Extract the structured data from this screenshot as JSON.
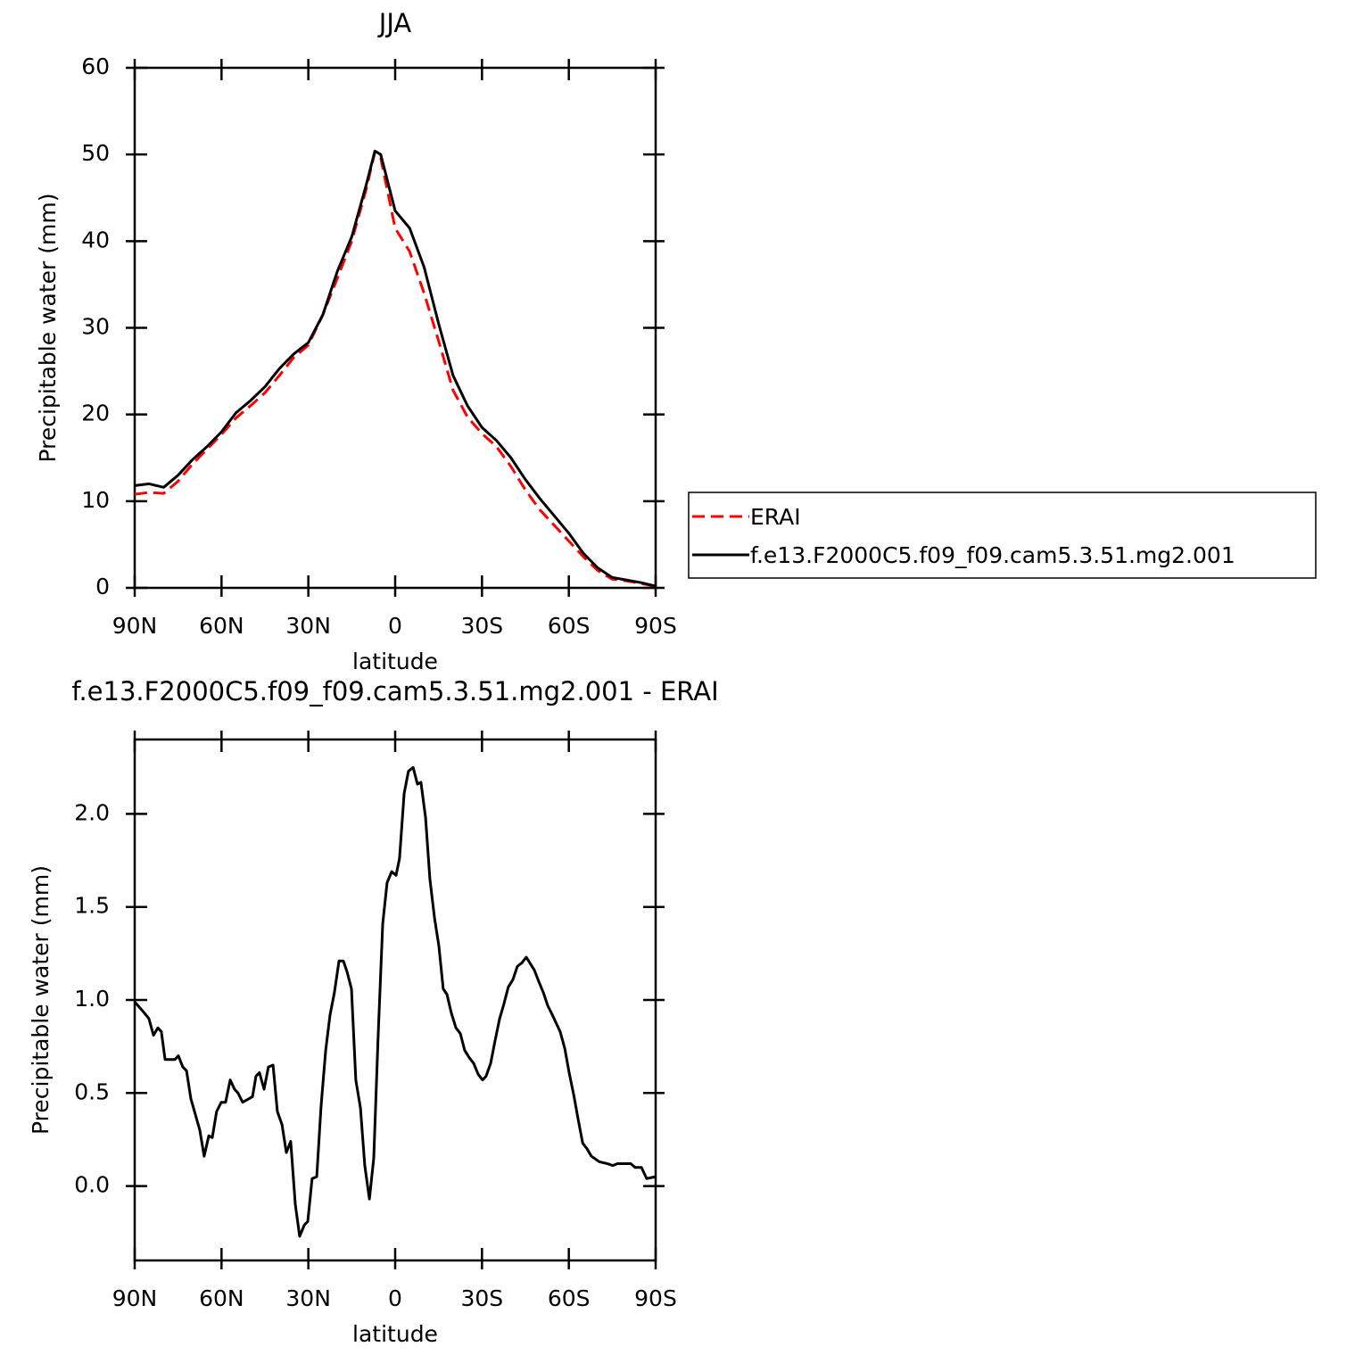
{
  "chart_data": [
    {
      "type": "line",
      "title": "JJA",
      "xlabel": "latitude",
      "ylabel": "Precipitable water (mm)",
      "x": [
        90,
        85,
        80,
        75,
        70,
        65,
        60,
        55,
        50,
        45,
        40,
        35,
        30,
        25,
        20,
        15,
        10,
        7,
        5,
        0,
        -5,
        -10,
        -15,
        -20,
        -25,
        -30,
        -35,
        -40,
        -45,
        -50,
        -55,
        -60,
        -65,
        -70,
        -75,
        -80,
        -85,
        -90
      ],
      "series": [
        {
          "name": "ERAI",
          "color": "#ff0000",
          "style": "dashed",
          "values": [
            10.8,
            11.0,
            10.9,
            12.3,
            14.3,
            16.0,
            17.7,
            19.6,
            21.0,
            22.5,
            24.5,
            26.6,
            28.0,
            31.5,
            35.7,
            40.0,
            46.0,
            50.3,
            49.6,
            41.5,
            38.8,
            34.0,
            28.5,
            22.8,
            19.7,
            17.8,
            16.3,
            14.0,
            11.3,
            9.0,
            7.2,
            5.4,
            3.6,
            2.0,
            1.0,
            0.8,
            0.5,
            0.2
          ]
        },
        {
          "name": "f.e13.F2000C5.f09_f09.cam5.3.51.mg2.001",
          "color": "#000000",
          "style": "solid",
          "values": [
            11.8,
            12.0,
            11.6,
            13.0,
            14.8,
            16.3,
            18.0,
            20.2,
            21.6,
            23.2,
            25.3,
            27.0,
            28.3,
            31.5,
            36.5,
            40.5,
            46.5,
            50.4,
            50.0,
            43.5,
            41.5,
            37.0,
            30.5,
            24.5,
            21.0,
            18.5,
            17.0,
            15.0,
            12.5,
            10.3,
            8.3,
            6.3,
            4.0,
            2.3,
            1.2,
            0.9,
            0.6,
            0.2
          ]
        }
      ],
      "xlim": [
        90,
        -90
      ],
      "xticks": [
        {
          "value": 90,
          "label": "90N"
        },
        {
          "value": 60,
          "label": "60N"
        },
        {
          "value": 30,
          "label": "30N"
        },
        0,
        {
          "value": -30,
          "label": "30S"
        },
        {
          "value": -60,
          "label": "60S"
        },
        {
          "value": -90,
          "label": "90S"
        }
      ],
      "ylim": [
        0,
        60
      ],
      "yticks": [
        0,
        10,
        20,
        30,
        40,
        50,
        60
      ],
      "legend": "outside-right"
    },
    {
      "type": "line",
      "title": "f.e13.F2000C5.f09_f09.cam5.3.51.mg2.001  -  ERAI",
      "xlabel": "latitude",
      "ylabel": "Precipitable water (mm)",
      "x": [
        90,
        87.2,
        85.1,
        83.5,
        82,
        80.8,
        79.5,
        76.1,
        74.9,
        73.4,
        72.1,
        70.6,
        67.5,
        66,
        64.4,
        63.2,
        61.7,
        60.1,
        58.6,
        57,
        55.5,
        54.3,
        52.7,
        49.3,
        48.1,
        46.9,
        45.3,
        43.8,
        42.2,
        40.7,
        39.1,
        37.6,
        36.1,
        34.5,
        33,
        31.4,
        30.2,
        28.7,
        27.1,
        25.6,
        24,
        22.5,
        21,
        19.4,
        17.9,
        16.6,
        15.1,
        13.6,
        12,
        10.5,
        8.9,
        7.4,
        5.9,
        4.3,
        2.8,
        1.2,
        -0.3,
        -1.5,
        -3.1,
        -4.6,
        -6.2,
        -7.7,
        -8.9,
        -10.5,
        -12,
        -13.6,
        -15.1,
        -16.6,
        -17.9,
        -19.4,
        -21,
        -22.5,
        -24,
        -25.6,
        -27.1,
        -28.7,
        -30.2,
        -31.4,
        -33,
        -34.5,
        -36.1,
        -37.6,
        -39.1,
        -40.7,
        -42.2,
        -43.8,
        -45.3,
        -46.5,
        -48.1,
        -49.6,
        -51.2,
        -52.7,
        -54.3,
        -57,
        -58.6,
        -60.1,
        -61.7,
        -63.2,
        -64.8,
        -66.3,
        -67.8,
        -70.6,
        -73.4,
        -75.2,
        -76.8,
        -78.3,
        -79.8,
        -81.4,
        -82.9,
        -85.1,
        -86.9,
        -90
      ],
      "series": [
        {
          "color": "#000000",
          "style": "solid",
          "values": [
            0.99,
            0.94,
            0.9,
            0.81,
            0.85,
            0.83,
            0.68,
            0.68,
            0.7,
            0.64,
            0.62,
            0.47,
            0.3,
            0.16,
            0.27,
            0.26,
            0.4,
            0.45,
            0.45,
            0.57,
            0.52,
            0.5,
            0.45,
            0.48,
            0.59,
            0.61,
            0.52,
            0.64,
            0.65,
            0.4,
            0.33,
            0.18,
            0.24,
            -0.1,
            -0.27,
            -0.21,
            -0.19,
            0.04,
            0.05,
            0.43,
            0.73,
            0.92,
            1.04,
            1.21,
            1.21,
            1.15,
            1.06,
            0.57,
            0.42,
            0.11,
            -0.07,
            0.15,
            0.8,
            1.41,
            1.63,
            1.69,
            1.67,
            1.76,
            2.11,
            2.23,
            2.25,
            2.16,
            2.17,
            1.98,
            1.65,
            1.44,
            1.29,
            1.06,
            1.03,
            0.93,
            0.85,
            0.82,
            0.73,
            0.69,
            0.66,
            0.6,
            0.57,
            0.59,
            0.66,
            0.78,
            0.9,
            0.98,
            1.07,
            1.11,
            1.18,
            1.2,
            1.23,
            1.2,
            1.16,
            1.1,
            1.04,
            0.97,
            0.92,
            0.83,
            0.74,
            0.61,
            0.49,
            0.36,
            0.23,
            0.2,
            0.16,
            0.13,
            0.12,
            0.11,
            0.12,
            0.12,
            0.12,
            0.12,
            0.1,
            0.1,
            0.04,
            0.05
          ]
        }
      ],
      "xlim": [
        90,
        -90
      ],
      "xticks": [
        {
          "value": 90,
          "label": "90N"
        },
        {
          "value": 60,
          "label": "60N"
        },
        {
          "value": 30,
          "label": "30N"
        },
        0,
        {
          "value": -30,
          "label": "30S"
        },
        {
          "value": -60,
          "label": "60S"
        },
        {
          "value": -90,
          "label": "90S"
        }
      ],
      "ylim": [
        -0.4,
        2.4
      ],
      "yticks": [
        {
          "value": 0,
          "label": "0.0"
        },
        {
          "value": 0.5,
          "label": "0.5"
        },
        {
          "value": 1,
          "label": "1.0"
        },
        {
          "value": 1.5,
          "label": "1.5"
        },
        {
          "value": 2,
          "label": "2.0"
        }
      ]
    }
  ]
}
